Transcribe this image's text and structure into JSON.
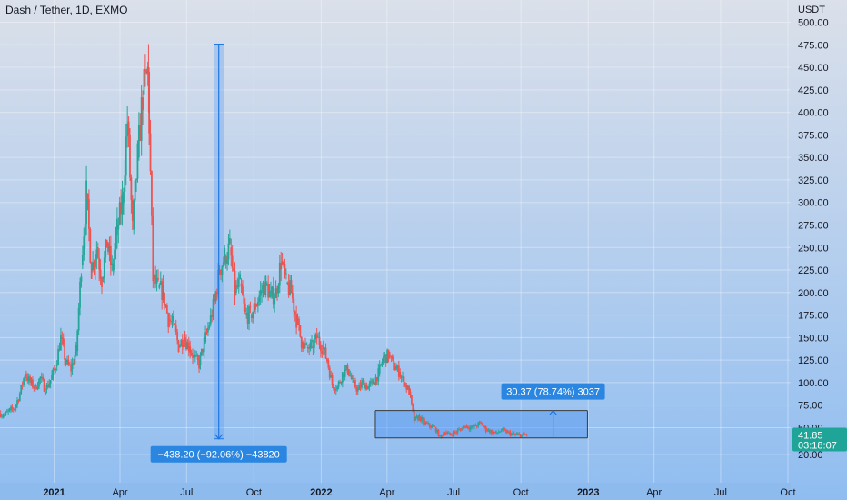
{
  "header": {
    "title": "Dash / Tether, 1D, EXMO"
  },
  "colors": {
    "bg_top": "#dbe0ea",
    "bg_bottom": "#8fbdf1",
    "up": "#26a69a",
    "down": "#ef5350",
    "measure_fill": "#5b9cf0",
    "measure_line": "#1e78e0",
    "label_bg": "#2a86e0",
    "price_label_bg": "#1fa597"
  },
  "chart_data": {
    "type": "candlestick",
    "title": "Dash / Tether, 1D, EXMO",
    "ylabel": "USDT",
    "ylim": [
      0,
      525
    ],
    "y_ticks": [
      20,
      50,
      75,
      100,
      125,
      150,
      175,
      200,
      225,
      250,
      275,
      300,
      325,
      350,
      375,
      400,
      425,
      450,
      475,
      500
    ],
    "y_tick_labels": [
      "20.00",
      "50.00",
      "75.00",
      "100.00",
      "125.00",
      "150.00",
      "175.00",
      "200.00",
      "225.00",
      "250.00",
      "275.00",
      "300.00",
      "325.00",
      "350.00",
      "375.00",
      "400.00",
      "425.00",
      "450.00",
      "475.00",
      "500.00"
    ],
    "x_range": [
      "2020-10-19",
      "2023-11-09"
    ],
    "x_ticks": [
      {
        "date": "2021-01-01",
        "label": "2021",
        "bold": true
      },
      {
        "date": "2021-04-01",
        "label": "Apr"
      },
      {
        "date": "2021-07-01",
        "label": "Jul"
      },
      {
        "date": "2021-10-01",
        "label": "Oct"
      },
      {
        "date": "2022-01-01",
        "label": "2022",
        "bold": true
      },
      {
        "date": "2022-04-01",
        "label": "Apr"
      },
      {
        "date": "2022-07-01",
        "label": "Jul"
      },
      {
        "date": "2022-10-01",
        "label": "Oct"
      },
      {
        "date": "2023-01-01",
        "label": "2023",
        "bold": true
      },
      {
        "date": "2023-04-01",
        "label": "Apr"
      },
      {
        "date": "2023-07-01",
        "label": "Jul"
      },
      {
        "date": "2023-10-01",
        "label": "Oct"
      }
    ],
    "series": [
      {
        "values": [
          [
            "2020-10-19",
            66
          ],
          [
            "2020-10-26",
            64
          ],
          [
            "2020-11-02",
            69
          ],
          [
            "2020-11-09",
            72
          ],
          [
            "2020-11-16",
            88
          ],
          [
            "2020-11-23",
            110
          ],
          [
            "2020-11-30",
            100
          ],
          [
            "2020-12-07",
            95
          ],
          [
            "2020-12-14",
            105
          ],
          [
            "2020-12-21",
            92
          ],
          [
            "2020-12-28",
            103
          ],
          [
            "2021-01-04",
            118
          ],
          [
            "2021-01-11",
            150
          ],
          [
            "2021-01-18",
            122
          ],
          [
            "2021-01-25",
            115
          ],
          [
            "2021-02-01",
            135
          ],
          [
            "2021-02-08",
            230
          ],
          [
            "2021-02-15",
            310
          ],
          [
            "2021-02-22",
            225
          ],
          [
            "2021-03-01",
            250
          ],
          [
            "2021-03-08",
            215
          ],
          [
            "2021-03-15",
            255
          ],
          [
            "2021-03-22",
            225
          ],
          [
            "2021-03-29",
            270
          ],
          [
            "2021-04-05",
            300
          ],
          [
            "2021-04-12",
            390
          ],
          [
            "2021-04-19",
            270
          ],
          [
            "2021-04-26",
            350
          ],
          [
            "2021-05-03",
            420
          ],
          [
            "2021-05-10",
            445
          ],
          [
            "2021-05-17",
            215
          ],
          [
            "2021-05-24",
            205
          ],
          [
            "2021-05-31",
            200
          ],
          [
            "2021-06-07",
            170
          ],
          [
            "2021-06-14",
            165
          ],
          [
            "2021-06-21",
            140
          ],
          [
            "2021-06-28",
            150
          ],
          [
            "2021-07-05",
            140
          ],
          [
            "2021-07-12",
            128
          ],
          [
            "2021-07-19",
            120
          ],
          [
            "2021-07-26",
            145
          ],
          [
            "2021-08-02",
            165
          ],
          [
            "2021-08-09",
            190
          ],
          [
            "2021-08-16",
            225
          ],
          [
            "2021-08-23",
            240
          ],
          [
            "2021-08-30",
            250
          ],
          [
            "2021-09-06",
            200
          ],
          [
            "2021-09-13",
            210
          ],
          [
            "2021-09-20",
            175
          ],
          [
            "2021-09-27",
            175
          ],
          [
            "2021-10-04",
            185
          ],
          [
            "2021-10-11",
            200
          ],
          [
            "2021-10-18",
            210
          ],
          [
            "2021-10-25",
            195
          ],
          [
            "2021-11-01",
            200
          ],
          [
            "2021-11-08",
            235
          ],
          [
            "2021-11-15",
            210
          ],
          [
            "2021-11-22",
            200
          ],
          [
            "2021-11-29",
            170
          ],
          [
            "2021-12-06",
            145
          ],
          [
            "2021-12-13",
            138
          ],
          [
            "2021-12-20",
            140
          ],
          [
            "2021-12-27",
            150
          ],
          [
            "2022-01-03",
            140
          ],
          [
            "2022-01-10",
            125
          ],
          [
            "2022-01-17",
            98
          ],
          [
            "2022-01-24",
            95
          ],
          [
            "2022-01-31",
            110
          ],
          [
            "2022-02-07",
            115
          ],
          [
            "2022-02-14",
            100
          ],
          [
            "2022-02-21",
            92
          ],
          [
            "2022-02-28",
            100
          ],
          [
            "2022-03-07",
            95
          ],
          [
            "2022-03-14",
            100
          ],
          [
            "2022-03-21",
            110
          ],
          [
            "2022-03-28",
            128
          ],
          [
            "2022-04-04",
            130
          ],
          [
            "2022-04-11",
            118
          ],
          [
            "2022-04-18",
            112
          ],
          [
            "2022-04-25",
            100
          ],
          [
            "2022-05-02",
            90
          ],
          [
            "2022-05-09",
            58
          ],
          [
            "2022-05-16",
            62
          ],
          [
            "2022-05-23",
            55
          ],
          [
            "2022-05-30",
            52
          ],
          [
            "2022-06-06",
            50
          ],
          [
            "2022-06-13",
            40
          ],
          [
            "2022-06-20",
            45
          ],
          [
            "2022-06-27",
            42
          ],
          [
            "2022-07-04",
            45
          ],
          [
            "2022-07-11",
            48
          ],
          [
            "2022-07-18",
            52
          ],
          [
            "2022-07-25",
            50
          ],
          [
            "2022-08-01",
            52
          ],
          [
            "2022-08-08",
            55
          ],
          [
            "2022-08-15",
            48
          ],
          [
            "2022-08-22",
            46
          ],
          [
            "2022-08-29",
            44
          ],
          [
            "2022-09-05",
            47
          ],
          [
            "2022-09-12",
            45
          ],
          [
            "2022-09-19",
            43
          ],
          [
            "2022-09-26",
            42
          ],
          [
            "2022-10-03",
            42
          ],
          [
            "2022-10-10",
            41.85
          ]
        ]
      }
    ],
    "last_price": {
      "value": 41.85,
      "label": "41.85",
      "countdown": "03:18:07"
    },
    "measures": [
      {
        "from_date": "2021-08-07",
        "to_date": "2021-08-21",
        "from_price": 475.8,
        "to_price": 37.6,
        "label": "−438.20 (−92.06%) −43820"
      },
      {
        "from_date": "2022-03-16",
        "to_date": "2022-12-31",
        "from_price": 38.57,
        "to_price": 68.94,
        "arrow_date": "2022-11-14",
        "label": "30.37 (78.74%) 3037"
      }
    ],
    "grid": true
  }
}
